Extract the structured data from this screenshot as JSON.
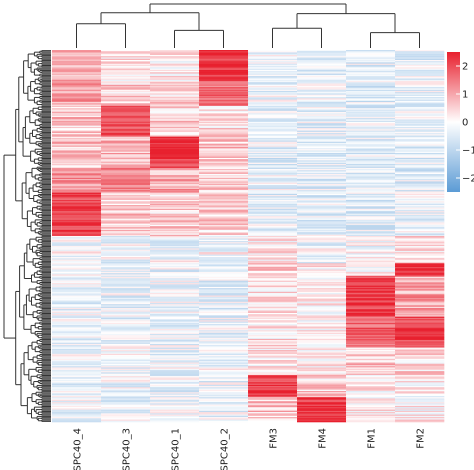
{
  "chart_data": {
    "type": "heatmap",
    "title": "",
    "xlabel": "",
    "ylabel": "",
    "columns": [
      "SPC40_4",
      "SPC40_3",
      "SPC40_1",
      "SPC40_2",
      "FM3",
      "FM4",
      "FM1",
      "FM2"
    ],
    "row_count": 300,
    "value_range": [
      -2.5,
      2.5
    ],
    "colorbar": {
      "ticks": [
        2,
        1,
        0,
        -1,
        -2
      ],
      "tick_labels": [
        "2",
        "1",
        "0",
        "−1",
        "−2"
      ],
      "low_color": "#5b9bd5",
      "mid_color": "#ffffff",
      "high_color": "#e8202e"
    },
    "row_blocks": [
      {
        "rows": [
          0,
          25
        ],
        "values": [
          1.0,
          0.3,
          0.2,
          2.3,
          -0.3,
          -0.4,
          -0.4,
          -0.4
        ]
      },
      {
        "rows": [
          25,
          45
        ],
        "values": [
          1.0,
          0.5,
          0.4,
          1.6,
          -0.3,
          -0.3,
          -0.4,
          -0.3
        ]
      },
      {
        "rows": [
          45,
          70
        ],
        "values": [
          0.6,
          2.1,
          0.5,
          0.4,
          -0.4,
          -0.3,
          -0.4,
          -0.4
        ]
      },
      {
        "rows": [
          70,
          95
        ],
        "values": [
          0.6,
          0.7,
          2.2,
          0.7,
          -0.4,
          -0.4,
          -0.4,
          -0.4
        ]
      },
      {
        "rows": [
          95,
          115
        ],
        "values": [
          1.2,
          1.4,
          0.9,
          0.6,
          -0.3,
          -0.4,
          -0.4,
          -0.4
        ]
      },
      {
        "rows": [
          115,
          150
        ],
        "values": [
          2.1,
          0.6,
          0.5,
          0.6,
          -0.4,
          -0.4,
          -0.4,
          -0.3
        ]
      },
      {
        "rows": [
          150,
          172
        ],
        "values": [
          -0.1,
          -0.2,
          -0.2,
          -0.1,
          0.2,
          -0.2,
          -0.1,
          0.3
        ]
      },
      {
        "rows": [
          172,
          182
        ],
        "values": [
          -0.3,
          -0.3,
          -0.3,
          -0.3,
          0.6,
          0.2,
          -0.1,
          2.3
        ]
      },
      {
        "rows": [
          182,
          215
        ],
        "values": [
          -0.3,
          -0.3,
          -0.3,
          -0.3,
          0.3,
          0.1,
          2.2,
          1.0
        ]
      },
      {
        "rows": [
          215,
          240
        ],
        "values": [
          -0.3,
          -0.3,
          -0.3,
          -0.3,
          0.3,
          0.1,
          1.7,
          2.1
        ]
      },
      {
        "rows": [
          240,
          262
        ],
        "values": [
          -0.2,
          -0.2,
          -0.2,
          -0.2,
          0.2,
          0.2,
          0.6,
          0.4
        ]
      },
      {
        "rows": [
          262,
          280
        ],
        "values": [
          -0.3,
          -0.3,
          -0.3,
          -0.3,
          2.2,
          0.5,
          0.2,
          0.1
        ]
      },
      {
        "rows": [
          280,
          300
        ],
        "values": [
          -0.3,
          -0.3,
          -0.3,
          -0.3,
          0.6,
          2.3,
          0.2,
          0.1
        ]
      }
    ],
    "column_dendrogram": [
      {
        "a": 0,
        "b": 1,
        "h": 0.55
      },
      {
        "a": 2,
        "b": 3,
        "h": 0.4
      },
      {
        "a": 4,
        "b": 5,
        "h": 0.45
      },
      {
        "a": 6,
        "b": 7,
        "h": 0.35
      }
    ],
    "legend_position": "right",
    "grid": false
  }
}
